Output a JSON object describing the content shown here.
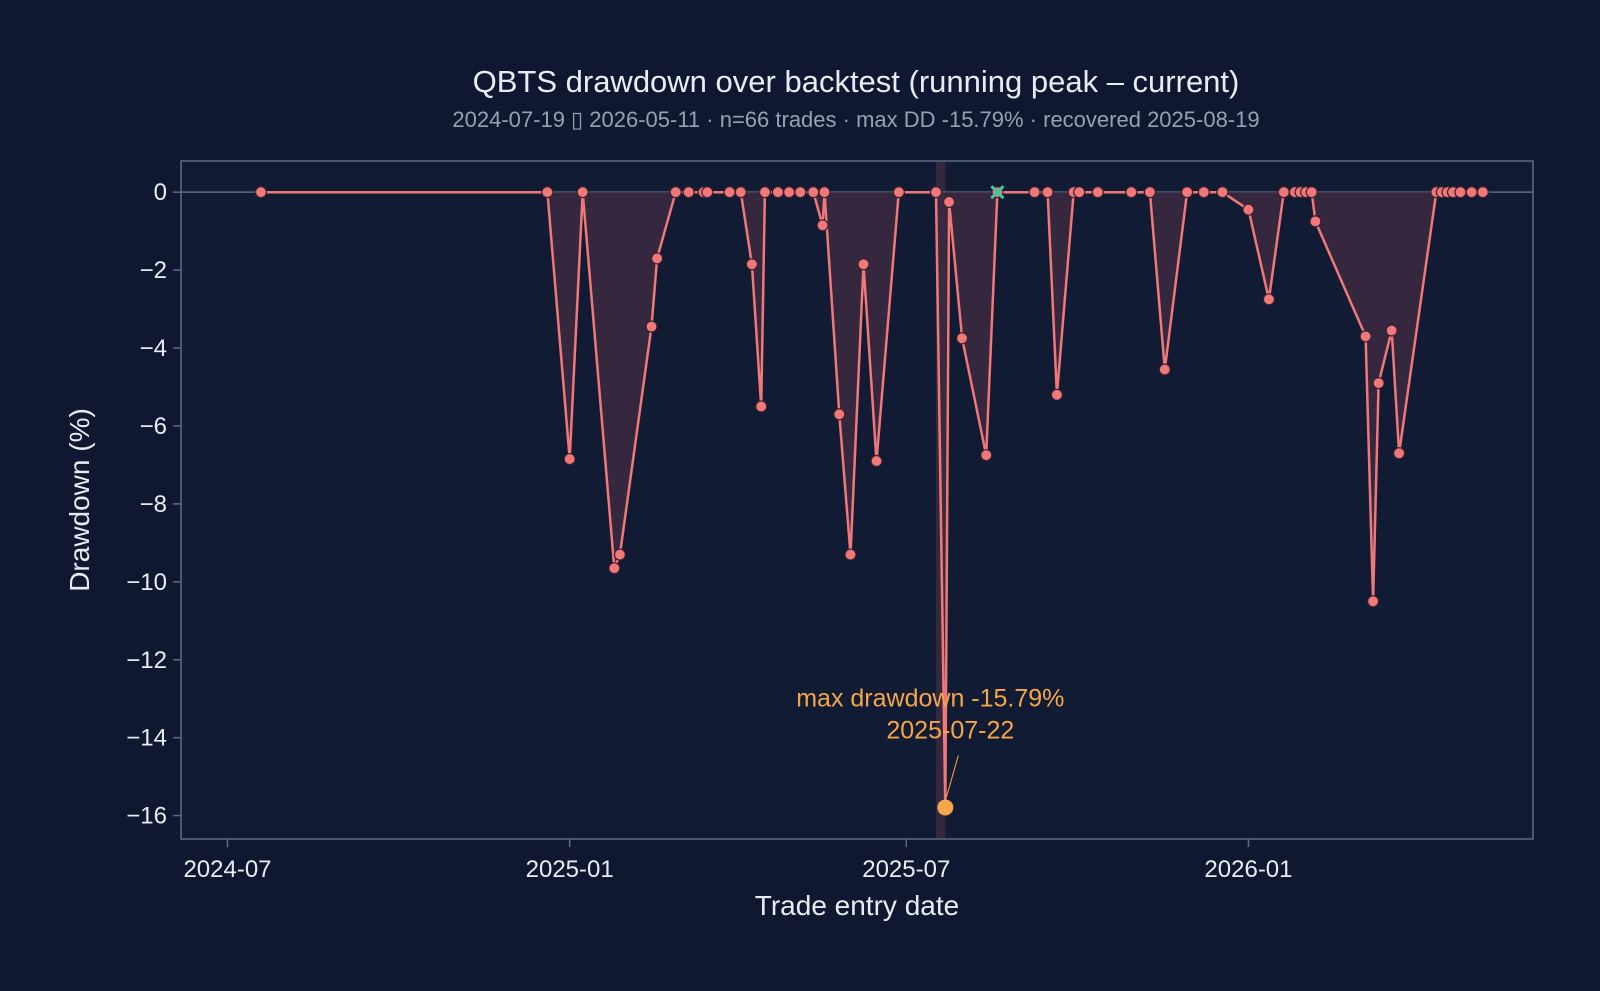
{
  "chart_data": {
    "type": "line",
    "title": "QBTS drawdown over backtest (running peak – current)",
    "subtitle": "2024-07-19 ▯ 2026-05-11 · n=66 trades · max DD -15.79% · recovered 2025-08-19",
    "xlabel": "Trade entry date",
    "ylabel": "Drawdown (%)",
    "ylim": [
      -16.6,
      0.8
    ],
    "xlim": [
      "2024-06-06",
      "2026-06-03"
    ],
    "y_ticks": [
      0,
      -2,
      -4,
      -6,
      -8,
      -10,
      -12,
      -14,
      -16
    ],
    "y_tick_labels": [
      "0",
      "−2",
      "−4",
      "−6",
      "−8",
      "−10",
      "−12",
      "−14",
      "−16"
    ],
    "x_ticks": [
      "2024-07-01",
      "2025-01-01",
      "2025-07-01",
      "2026-01-01"
    ],
    "x_tick_labels": [
      "2024-07",
      "2025-01",
      "2025-07",
      "2026-01"
    ],
    "grid": false,
    "series": [
      {
        "color": "#f07878",
        "x": [
          "2024-07-19",
          "2024-12-20",
          "2025-01-01",
          "2025-01-08",
          "2025-01-25",
          "2025-01-28",
          "2025-02-14",
          "2025-02-17",
          "2025-02-27",
          "2025-03-06",
          "2025-03-14",
          "2025-03-16",
          "2025-03-28",
          "2025-04-03",
          "2025-04-09",
          "2025-04-14",
          "2025-04-16",
          "2025-04-23",
          "2025-04-29",
          "2025-05-05",
          "2025-05-12",
          "2025-05-17",
          "2025-05-18",
          "2025-05-26",
          "2025-06-01",
          "2025-06-08",
          "2025-06-15",
          "2025-06-27",
          "2025-07-17",
          "2025-07-22",
          "2025-07-24",
          "2025-07-31",
          "2025-08-13",
          "2025-08-19",
          "2025-09-08",
          "2025-09-15",
          "2025-09-20",
          "2025-09-29",
          "2025-10-02",
          "2025-10-12",
          "2025-10-30",
          "2025-11-09",
          "2025-11-17",
          "2025-11-29",
          "2025-12-08",
          "2025-12-18",
          "2026-01-01",
          "2026-01-12",
          "2026-01-20",
          "2026-01-26",
          "2026-01-29",
          "2026-02-01",
          "2026-02-04",
          "2026-02-06",
          "2026-03-05",
          "2026-03-09",
          "2026-03-12",
          "2026-03-19",
          "2026-03-23",
          "2026-04-12",
          "2026-04-15",
          "2026-04-18",
          "2026-04-21",
          "2026-04-25",
          "2026-05-01",
          "2026-05-07"
        ],
        "y": [
          0,
          0,
          -6.85,
          0,
          -9.65,
          -9.3,
          -3.45,
          -1.7,
          0,
          0,
          0,
          0,
          0,
          0,
          -1.85,
          -5.5,
          0,
          0,
          0,
          0,
          0,
          -0.85,
          0,
          -5.7,
          -9.3,
          -1.85,
          -6.9,
          0,
          0,
          -15.79,
          -0.25,
          -3.75,
          -6.75,
          0,
          0,
          0,
          -5.2,
          0,
          0,
          0,
          0,
          0,
          -4.55,
          0,
          0,
          0,
          -0.45,
          -2.75,
          0,
          0,
          0,
          0,
          0,
          -0.75,
          -3.7,
          -10.5,
          -4.9,
          -3.55,
          -6.7,
          0,
          0,
          0,
          0,
          0,
          0,
          0
        ]
      }
    ],
    "annotations": {
      "max_drawdown": {
        "label_line1": "max drawdown -15.79%",
        "label_line2": "2025-07-22",
        "x": "2025-07-22",
        "y": -15.79,
        "color": "#f5a64a"
      },
      "recovery": {
        "x": "2025-08-19",
        "y": 0,
        "color": "#3ec7a0"
      }
    },
    "max_drawdown_band": [
      "2025-07-17",
      "2025-07-22"
    ],
    "colors": {
      "background": "#0f1830",
      "plot_bg": "#111b33",
      "line": "#f07878",
      "fill": "#3a2a3f",
      "axis": "#5f6b85"
    }
  }
}
